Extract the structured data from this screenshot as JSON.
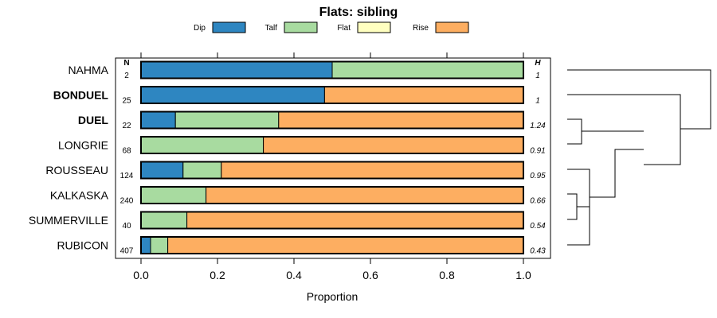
{
  "chart_data": {
    "type": "bar",
    "stacked": true,
    "orientation": "horizontal",
    "title": "Flats: sibling",
    "xlabel": "Proportion",
    "ylabel": "",
    "xlim": [
      0,
      1
    ],
    "x_ticks": [
      "0.0",
      "0.2",
      "0.4",
      "0.6",
      "0.8",
      "1.0"
    ],
    "n_header": "N",
    "h_header": "H",
    "legend_position": "top",
    "series": [
      {
        "name": "Dip",
        "color": "#2e86c1"
      },
      {
        "name": "Talf",
        "color": "#a8dba0"
      },
      {
        "name": "Flat",
        "color": "#ffffc0"
      },
      {
        "name": "Rise",
        "color": "#fdae61"
      }
    ],
    "categories": [
      {
        "label": "NAHMA",
        "bold": false,
        "n": "2",
        "h": "1",
        "values": [
          0.5,
          0.5,
          0,
          0
        ]
      },
      {
        "label": "BONDUEL",
        "bold": true,
        "n": "25",
        "h": "1",
        "values": [
          0.48,
          0,
          0,
          0.52
        ]
      },
      {
        "label": "DUEL",
        "bold": true,
        "n": "22",
        "h": "1.24",
        "values": [
          0.09,
          0.27,
          0,
          0.64
        ]
      },
      {
        "label": "LONGRIE",
        "bold": false,
        "n": "68",
        "h": "0.91",
        "values": [
          0,
          0.32,
          0,
          0.68
        ]
      },
      {
        "label": "ROUSSEAU",
        "bold": false,
        "n": "124",
        "h": "0.95",
        "values": [
          0.11,
          0.1,
          0,
          0.79
        ]
      },
      {
        "label": "KALKASKA",
        "bold": false,
        "n": "240",
        "h": "0.66",
        "values": [
          0,
          0.17,
          0,
          0.83
        ]
      },
      {
        "label": "SUMMERVILLE",
        "bold": false,
        "n": "40",
        "h": "0.54",
        "values": [
          0,
          0.12,
          0,
          0.88
        ]
      },
      {
        "label": "RUBICON",
        "bold": false,
        "n": "407",
        "h": "0.43",
        "values": [
          0.025,
          0.045,
          0,
          0.93
        ]
      }
    ],
    "dendrogram": true
  }
}
